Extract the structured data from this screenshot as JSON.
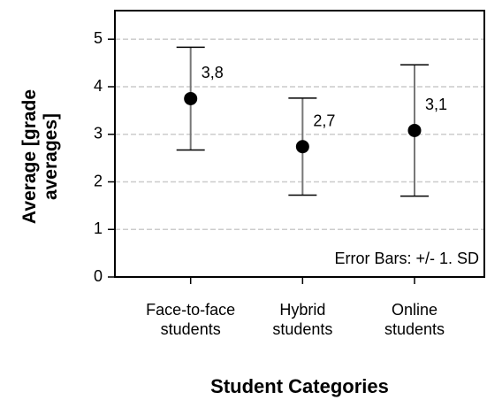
{
  "chart_data": {
    "type": "errorbar",
    "xlabel": "Student Categories",
    "ylabel": "Average [grade averages]",
    "annotation": "Error Bars: +/- 1. SD",
    "categories": [
      "Face-to-face students",
      "Hybrid students",
      "Online students"
    ],
    "values": [
      3.75,
      2.74,
      3.08
    ],
    "value_labels": [
      "3,8",
      "2,7",
      "3,1"
    ],
    "errors": [
      1.08,
      1.02,
      1.38
    ],
    "color": "#000000",
    "ylim": [
      0,
      5.6
    ],
    "yticks": [
      0,
      1,
      2,
      3,
      4,
      5
    ],
    "grid": true
  }
}
